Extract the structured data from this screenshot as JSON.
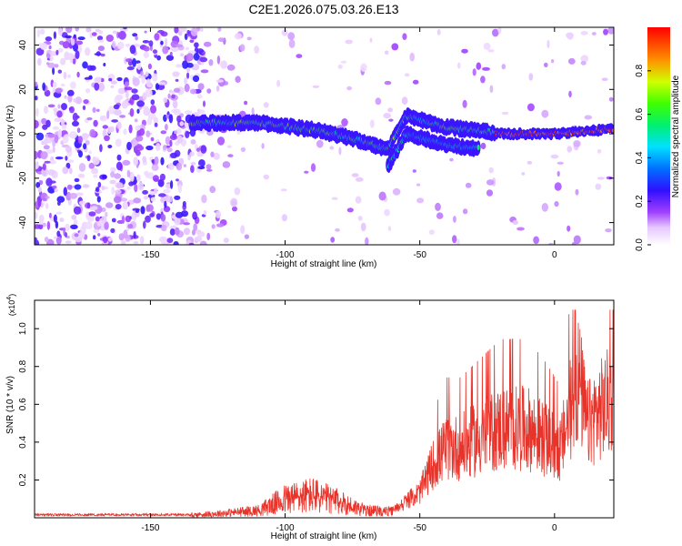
{
  "title": "C2E1.2026.075.03.26.E13",
  "chart_data": [
    {
      "type": "heatmap",
      "xlabel": "Height of straight line (km)",
      "ylabel": "Frequency (Hz)",
      "xlim": [
        -193,
        22
      ],
      "ylim": [
        -50,
        48
      ],
      "xticks": [
        -150,
        -100,
        -50,
        0
      ],
      "yticks": [
        -40,
        -20,
        0,
        20,
        40
      ],
      "colorbar": {
        "label": "Normalized spectral amplitude",
        "range": [
          0,
          1
        ],
        "ticks": [
          0.0,
          0.2,
          0.4,
          0.6,
          0.8
        ],
        "colormap": "rainbow-white-to-red"
      },
      "ridge": {
        "description_points": [
          {
            "x": -135,
            "f": 5
          },
          {
            "x": -110,
            "f": 5
          },
          {
            "x": -90,
            "f": 2
          },
          {
            "x": -75,
            "f": -2
          },
          {
            "x": -62,
            "f": -7
          },
          {
            "x": -55,
            "f": 8
          },
          {
            "x": -40,
            "f": 3
          },
          {
            "x": -25,
            "f": 1
          },
          {
            "x": -20,
            "f": 0
          },
          {
            "x": 0,
            "f": 0
          },
          {
            "x": 20,
            "f": 2
          }
        ]
      }
    },
    {
      "type": "line",
      "xlabel": "Height of straight line (km)",
      "ylabel": "SNR (10 * v/v)",
      "yscale_label": "(x10^4)",
      "xlim": [
        -193,
        22
      ],
      "ylim": [
        0,
        1.15
      ],
      "xticks": [
        -150,
        -100,
        -50,
        0
      ],
      "yticks": [
        0.2,
        0.4,
        0.6,
        0.8,
        1.0
      ],
      "series": [
        {
          "color": "#e8332a",
          "envelope": [
            {
              "x": -193,
              "y": 0.015
            },
            {
              "x": -140,
              "y": 0.02
            },
            {
              "x": -125,
              "y": 0.04
            },
            {
              "x": -110,
              "y": 0.07
            },
            {
              "x": -100,
              "y": 0.18
            },
            {
              "x": -90,
              "y": 0.22
            },
            {
              "x": -80,
              "y": 0.15
            },
            {
              "x": -70,
              "y": 0.07
            },
            {
              "x": -60,
              "y": 0.06
            },
            {
              "x": -50,
              "y": 0.2
            },
            {
              "x": -45,
              "y": 0.42
            },
            {
              "x": -40,
              "y": 0.55
            },
            {
              "x": -35,
              "y": 0.55
            },
            {
              "x": -30,
              "y": 0.6
            },
            {
              "x": -20,
              "y": 0.7
            },
            {
              "x": -10,
              "y": 0.7
            },
            {
              "x": -4,
              "y": 0.62
            },
            {
              "x": 2,
              "y": 0.52
            },
            {
              "x": 6,
              "y": 0.85
            },
            {
              "x": 9,
              "y": 1.1
            },
            {
              "x": 12,
              "y": 0.72
            },
            {
              "x": 16,
              "y": 0.82
            },
            {
              "x": 22,
              "y": 0.95
            }
          ]
        }
      ]
    }
  ]
}
